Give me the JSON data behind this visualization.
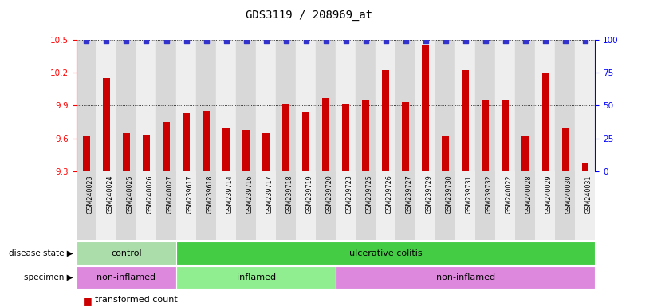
{
  "title": "GDS3119 / 208969_at",
  "samples": [
    "GSM240023",
    "GSM240024",
    "GSM240025",
    "GSM240026",
    "GSM240027",
    "GSM239617",
    "GSM239618",
    "GSM239714",
    "GSM239716",
    "GSM239717",
    "GSM239718",
    "GSM239719",
    "GSM239720",
    "GSM239723",
    "GSM239725",
    "GSM239726",
    "GSM239727",
    "GSM239729",
    "GSM239730",
    "GSM239731",
    "GSM239732",
    "GSM240022",
    "GSM240028",
    "GSM240029",
    "GSM240030",
    "GSM240031"
  ],
  "bar_values": [
    9.62,
    10.15,
    9.65,
    9.63,
    9.75,
    9.83,
    9.85,
    9.7,
    9.68,
    9.65,
    9.92,
    9.84,
    9.97,
    9.92,
    9.95,
    10.22,
    9.93,
    10.45,
    9.62,
    10.22,
    9.95,
    9.95,
    9.62,
    10.2,
    9.7,
    9.38
  ],
  "bar_color": "#cc0000",
  "percentile_color": "#3333cc",
  "ylim_left": [
    9.3,
    10.5
  ],
  "ylim_right": [
    0,
    100
  ],
  "yticks_left": [
    9.3,
    9.6,
    9.9,
    10.2,
    10.5
  ],
  "yticks_right": [
    0,
    25,
    50,
    75,
    100
  ],
  "disease_state_groups": [
    {
      "label": "control",
      "start": 0,
      "end": 5,
      "color": "#aaddaa"
    },
    {
      "label": "ulcerative colitis",
      "start": 5,
      "end": 26,
      "color": "#44cc44"
    }
  ],
  "specimen_groups": [
    {
      "label": "non-inflamed",
      "start": 0,
      "end": 5,
      "color": "#dd88dd"
    },
    {
      "label": "inflamed",
      "start": 5,
      "end": 13,
      "color": "#dd88dd"
    },
    {
      "label": "non-inflamed",
      "start": 13,
      "end": 26,
      "color": "#dd88dd"
    }
  ],
  "specimen_colors": [
    "#dd88dd",
    "#90ee90",
    "#dd88dd"
  ],
  "tick_bg_even": "#d8d8d8",
  "tick_bg_odd": "#eeeeee"
}
